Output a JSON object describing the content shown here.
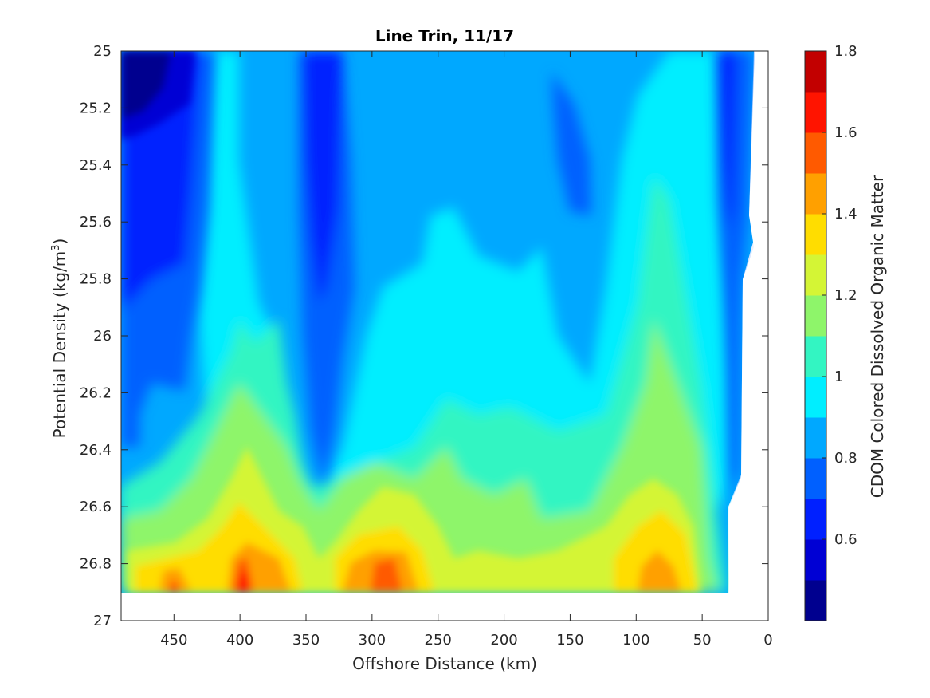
{
  "chart_data": {
    "type": "contour",
    "title": "Line Trin, 11/17",
    "xlabel": "Offshore Distance (km)",
    "ylabel": "Potential Density (kg/m",
    "ylabel_sup": "3",
    "ylabel_close": ")",
    "colorbar_label": "CDOM Colored Dissolved Organic Matter",
    "xlim": [
      490,
      0
    ],
    "xdir": "reverse",
    "ylim": [
      25,
      27
    ],
    "ydir": "reverse",
    "x_ticks": [
      "450",
      "400",
      "350",
      "300",
      "250",
      "200",
      "150",
      "100",
      "50",
      "0"
    ],
    "x_tick_values": [
      450,
      400,
      350,
      300,
      250,
      200,
      150,
      100,
      50,
      0
    ],
    "y_ticks": [
      "25",
      "25.2",
      "25.4",
      "25.6",
      "25.8",
      "26",
      "26.2",
      "26.4",
      "26.6",
      "26.8",
      "27"
    ],
    "y_tick_values": [
      25,
      25.2,
      25.4,
      25.6,
      25.8,
      26,
      26.2,
      26.4,
      26.6,
      26.8,
      27
    ],
    "colorbar_ticks": [
      "0.6",
      "0.8",
      "1",
      "1.2",
      "1.4",
      "1.6",
      "1.8"
    ],
    "colorbar_tick_values": [
      0.6,
      0.8,
      1.0,
      1.2,
      1.4,
      1.6,
      1.8
    ],
    "clim": [
      0.4,
      1.8
    ],
    "levels": [
      0.4,
      0.5,
      0.6,
      0.7,
      0.8,
      0.9,
      1.0,
      1.1,
      1.2,
      1.3,
      1.4,
      1.5,
      1.6,
      1.7,
      1.8
    ],
    "colormap": [
      "#00008f",
      "#0000d4",
      "#0020ff",
      "#0060ff",
      "#00a8ff",
      "#00eeff",
      "#33f5c2",
      "#8ef56a",
      "#d4f535",
      "#ffdd00",
      "#ffa000",
      "#ff5a00",
      "#ff1400",
      "#c20000"
    ],
    "bottom_boundary_density": 26.9,
    "grid": false,
    "regions": [
      {
        "name": "low-cdom-offshore-upper",
        "x": [
          490,
          430
        ],
        "y": [
          25.0,
          25.9
        ],
        "value": 0.5
      },
      {
        "name": "low-cdom-core-350km",
        "x": [
          360,
          320
        ],
        "y": [
          25.0,
          26.2
        ],
        "value": 0.6
      },
      {
        "name": "low-cdom-nearshore-30km",
        "x": [
          40,
          15
        ],
        "y": [
          25.0,
          26.6
        ],
        "value": 0.7
      },
      {
        "name": "mid-cdom-interior",
        "x": [
          300,
          120
        ],
        "y": [
          25.0,
          26.3
        ],
        "value": 0.85
      },
      {
        "name": "high-cdom-near-400km",
        "x": [
          410,
          380
        ],
        "y": [
          26.7,
          26.9
        ],
        "value": 1.7
      },
      {
        "name": "high-cdom-near-285km",
        "x": [
          300,
          270
        ],
        "y": [
          26.75,
          26.9
        ],
        "value": 1.6
      },
      {
        "name": "high-cdom-near-90km",
        "x": [
          100,
          70
        ],
        "y": [
          26.75,
          26.9
        ],
        "value": 1.5
      },
      {
        "name": "high-cdom-near-450km",
        "x": [
          460,
          435
        ],
        "y": [
          26.85,
          26.9
        ],
        "value": 1.6
      }
    ]
  }
}
